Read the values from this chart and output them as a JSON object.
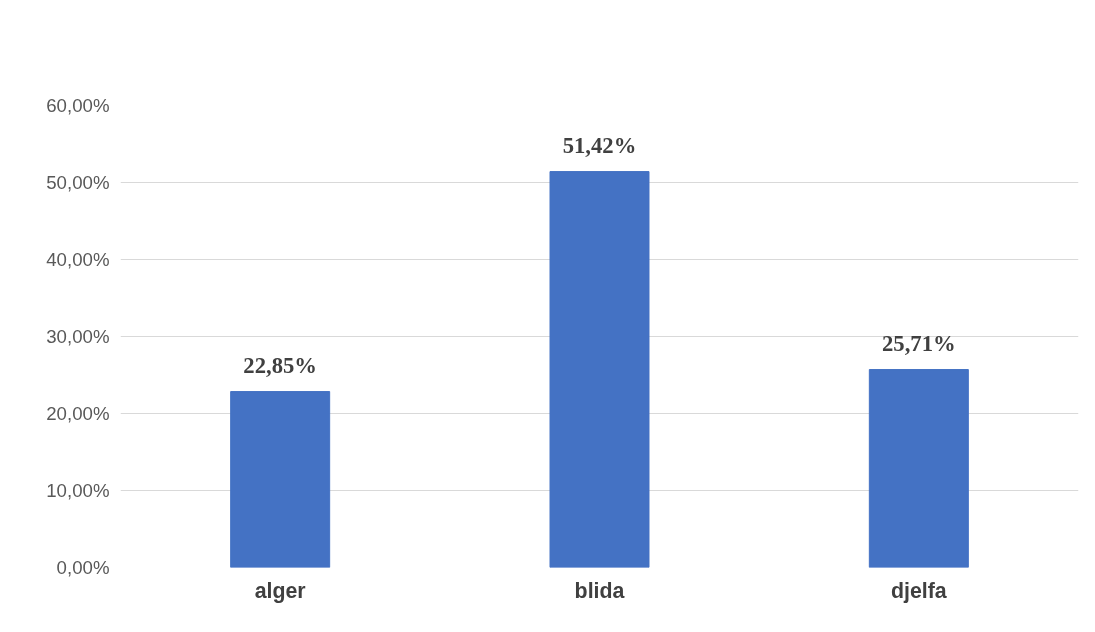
{
  "chart_data": {
    "type": "bar",
    "categories": [
      "alger",
      "blida",
      "djelfa"
    ],
    "values": [
      22.85,
      51.42,
      25.71
    ],
    "value_labels": [
      "22,85%",
      "51,42%",
      "25,71%"
    ],
    "color": "#4472c4",
    "ylim": [
      0,
      60
    ],
    "yticks": [
      {
        "value": 0,
        "label": "0,00%"
      },
      {
        "value": 10,
        "label": "10,00%"
      },
      {
        "value": 20,
        "label": "20,00%"
      },
      {
        "value": 30,
        "label": "30,00%"
      },
      {
        "value": 40,
        "label": "40,00%"
      },
      {
        "value": 50,
        "label": "50,00%"
      },
      {
        "value": 60,
        "label": "60,00%"
      }
    ],
    "grid": "y"
  }
}
